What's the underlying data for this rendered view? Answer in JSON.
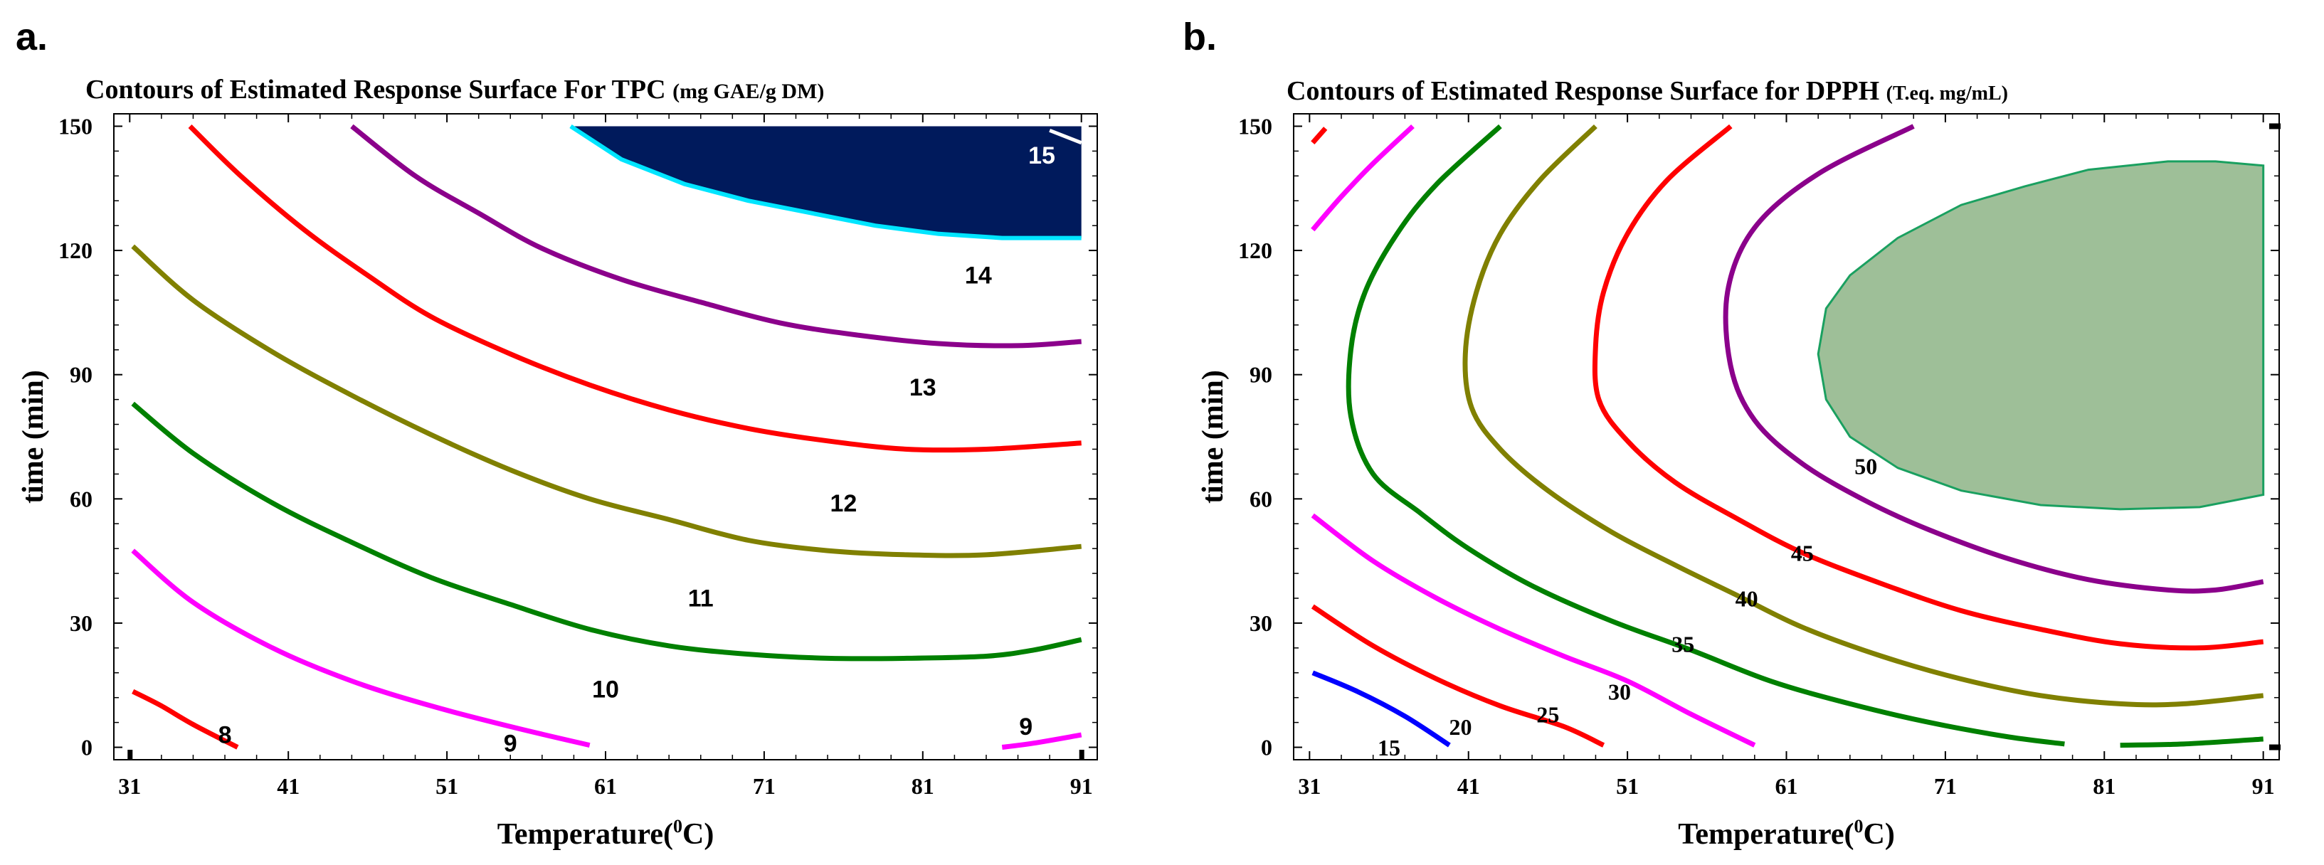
{
  "chart_data": [
    {
      "type": "contour",
      "panel_label": "a.",
      "title": "Contours of Estimated Response Surface For TPC",
      "title_unit": "(mg GAE/g DM)",
      "xlabel": "Temperature(",
      "xlabel_sup": "0",
      "xlabel_end": "C)",
      "ylabel": "time (min)",
      "xlim": [
        30,
        92
      ],
      "ylim": [
        -3,
        153
      ],
      "xticks": [
        31,
        41,
        51,
        61,
        71,
        81,
        91
      ],
      "xtick_labels": [
        "31",
        "41",
        "51",
        "61",
        "71",
        "81",
        "91"
      ],
      "yticks": [
        0,
        30,
        60,
        90,
        120,
        150
      ],
      "ytick_labels": [
        "0",
        "30",
        "60",
        "90",
        "120",
        "150"
      ],
      "filled_region": {
        "level": "15",
        "fill": "#001a5c",
        "edge": "#00e5ff",
        "boundary": [
          [
            58.8,
            150
          ],
          [
            62,
            142
          ],
          [
            66,
            136
          ],
          [
            70,
            132
          ],
          [
            74,
            129
          ],
          [
            78,
            126
          ],
          [
            82,
            124
          ],
          [
            86,
            123
          ],
          [
            91,
            123
          ],
          [
            91,
            150
          ]
        ]
      },
      "contours": [
        {
          "level": "8",
          "color": "#ff0000",
          "points": [
            [
              31.2,
              13.5
            ],
            [
              33,
              10
            ],
            [
              35,
              5.5
            ],
            [
              37.8,
              0
            ]
          ]
        },
        {
          "level": "9",
          "color": "#ff00ff",
          "points": [
            [
              31.2,
              47.5
            ],
            [
              35,
              35
            ],
            [
              40,
              24
            ],
            [
              45,
              16
            ],
            [
              50,
              10
            ],
            [
              55,
              5
            ],
            [
              60,
              0.5
            ]
          ]
        },
        {
          "level": "9",
          "color": "#ff00ff",
          "points": [
            [
              86,
              0
            ],
            [
              88,
              1
            ],
            [
              91,
              3
            ]
          ]
        },
        {
          "level": "10",
          "color": "#008000",
          "points": [
            [
              31.2,
              83
            ],
            [
              35,
              71
            ],
            [
              40,
              59
            ],
            [
              45,
              49.5
            ],
            [
              50,
              41
            ],
            [
              55,
              34.5
            ],
            [
              60,
              28.5
            ],
            [
              65,
              24.5
            ],
            [
              70,
              22.5
            ],
            [
              75,
              21.5
            ],
            [
              80,
              21.5
            ],
            [
              85,
              22
            ],
            [
              88,
              23.5
            ],
            [
              91,
              26
            ]
          ]
        },
        {
          "level": "11",
          "color": "#808000",
          "points": [
            [
              31.2,
              121
            ],
            [
              35,
              108
            ],
            [
              40,
              95.5
            ],
            [
              45,
              85
            ],
            [
              50,
              75.5
            ],
            [
              55,
              67
            ],
            [
              60,
              60
            ],
            [
              65,
              55
            ],
            [
              70,
              50
            ],
            [
              75,
              47.5
            ],
            [
              80,
              46.5
            ],
            [
              85,
              46.5
            ],
            [
              91,
              48.5
            ]
          ]
        },
        {
          "level": "12",
          "color": "#ff0000",
          "points": [
            [
              34.8,
              150
            ],
            [
              38,
              138
            ],
            [
              42,
              125
            ],
            [
              46,
              114
            ],
            [
              50,
              104
            ],
            [
              55,
              95
            ],
            [
              60,
              87.5
            ],
            [
              65,
              81.5
            ],
            [
              70,
              77
            ],
            [
              75,
              74
            ],
            [
              80,
              72
            ],
            [
              85,
              72
            ],
            [
              91,
              73.5
            ]
          ]
        },
        {
          "level": "13",
          "color": "#8b008b",
          "points": [
            [
              45,
              150
            ],
            [
              49,
              138
            ],
            [
              53,
              129
            ],
            [
              57,
              120.5
            ],
            [
              62,
              113
            ],
            [
              67,
              107.5
            ],
            [
              72,
              102.5
            ],
            [
              77,
              99.5
            ],
            [
              82,
              97.5
            ],
            [
              87,
              97
            ],
            [
              91,
              98
            ]
          ]
        }
      ],
      "labels": [
        {
          "text": "8",
          "x": 37,
          "y": 1
        },
        {
          "text": "9",
          "x": 55,
          "y": -1
        },
        {
          "text": "9",
          "x": 87.5,
          "y": 3
        },
        {
          "text": "10",
          "x": 61,
          "y": 12
        },
        {
          "text": "11",
          "x": 67,
          "y": 34
        },
        {
          "text": "12",
          "x": 76,
          "y": 57
        },
        {
          "text": "13",
          "x": 81,
          "y": 85
        },
        {
          "text": "14",
          "x": 84.5,
          "y": 112
        },
        {
          "text": "15",
          "x": 88.5,
          "y": 141
        }
      ],
      "marker_15": [
        [
          89,
          149
        ],
        [
          91,
          146
        ]
      ]
    },
    {
      "type": "contour",
      "panel_label": "b.",
      "title": "Contours of Estimated Response Surface for DPPH",
      "title_unit": "(T.eq. mg/mL)",
      "xlabel": "Temperature(",
      "xlabel_sup": "0",
      "xlabel_end": "C)",
      "ylabel": "time (min)",
      "xlim": [
        30,
        92
      ],
      "ylim": [
        -3,
        153
      ],
      "xticks": [
        31,
        41,
        51,
        61,
        71,
        81,
        91
      ],
      "xtick_labels": [
        "31",
        "41",
        "51",
        "61",
        "71",
        "81",
        "91"
      ],
      "yticks": [
        0,
        30,
        60,
        90,
        120,
        150
      ],
      "ytick_labels": [
        "0",
        "30",
        "60",
        "90",
        "120",
        "150"
      ],
      "filled_region": {
        "level": "50",
        "fill": "#9ebf98",
        "edge": "#1aa060",
        "boundary": [
          [
            91,
            61
          ],
          [
            87,
            58
          ],
          [
            82,
            57.5
          ],
          [
            77,
            58.5
          ],
          [
            72,
            62
          ],
          [
            68,
            67.5
          ],
          [
            65,
            75
          ],
          [
            63.5,
            84
          ],
          [
            63,
            95
          ],
          [
            63.5,
            106
          ],
          [
            65,
            114
          ],
          [
            68,
            123
          ],
          [
            72,
            131
          ],
          [
            76,
            135.5
          ],
          [
            80,
            139.5
          ],
          [
            85,
            141.5
          ],
          [
            88,
            141.5
          ],
          [
            91,
            140.5
          ]
        ]
      },
      "contours": [
        {
          "level": "15",
          "color": "#0000ff",
          "points": [
            [
              31.2,
              18
            ],
            [
              34,
              13.5
            ],
            [
              37,
              7.5
            ],
            [
              39.8,
              0.5
            ]
          ]
        },
        {
          "level": "20",
          "color": "#ff0000",
          "points": [
            [
              31.2,
              34
            ],
            [
              35,
              24.5
            ],
            [
              39,
              16.5
            ],
            [
              43,
              10
            ],
            [
              47,
              5
            ],
            [
              49.5,
              0.5
            ]
          ]
        },
        {
          "level": "20",
          "color": "#ff0000",
          "points": [
            [
              31.2,
              146
            ],
            [
              32,
              149.5
            ]
          ]
        },
        {
          "level": "25",
          "color": "#ff00ff",
          "points": [
            [
              31.2,
              56
            ],
            [
              35,
              45
            ],
            [
              39,
              36
            ],
            [
              43,
              28.5
            ],
            [
              47,
              22
            ],
            [
              51,
              16
            ],
            [
              55,
              8
            ],
            [
              59,
              0.5
            ]
          ]
        },
        {
          "level": "25",
          "color": "#ff00ff",
          "points": [
            [
              31.2,
              125
            ],
            [
              33,
              133
            ],
            [
              35,
              141
            ],
            [
              37.5,
              150
            ]
          ]
        },
        {
          "level": "30",
          "color": "#008000",
          "points": [
            [
              43,
              150
            ],
            [
              39,
              136
            ],
            [
              36.5,
              124
            ],
            [
              34.5,
              110
            ],
            [
              33.6,
              96
            ],
            [
              33.6,
              80
            ],
            [
              35,
              66
            ],
            [
              38,
              56.5
            ],
            [
              41,
              48
            ],
            [
              45,
              39
            ],
            [
              50,
              30.5
            ],
            [
              55,
              23.5
            ],
            [
              60,
              16
            ],
            [
              65,
              10.5
            ],
            [
              70,
              6
            ],
            [
              75,
              2.5
            ],
            [
              78.5,
              0.8
            ]
          ]
        },
        {
          "level": "30",
          "color": "#008000",
          "points": [
            [
              82,
              0.5
            ],
            [
              86,
              0.8
            ],
            [
              91,
              2
            ]
          ]
        },
        {
          "level": "35",
          "color": "#808000",
          "points": [
            [
              49,
              150
            ],
            [
              45.5,
              137
            ],
            [
              43,
              124
            ],
            [
              41.5,
              110
            ],
            [
              40.8,
              95
            ],
            [
              41.2,
              82
            ],
            [
              43,
              72
            ],
            [
              46,
              62
            ],
            [
              50,
              52
            ],
            [
              54,
              44
            ],
            [
              58,
              36.5
            ],
            [
              62,
              29
            ],
            [
              67,
              22
            ],
            [
              72,
              16.5
            ],
            [
              77,
              12.5
            ],
            [
              82,
              10.5
            ],
            [
              86,
              10.5
            ],
            [
              91,
              12.5
            ]
          ]
        },
        {
          "level": "40",
          "color": "#ff0000",
          "points": [
            [
              57.5,
              150
            ],
            [
              53.5,
              137
            ],
            [
              51,
              124
            ],
            [
              49.5,
              110
            ],
            [
              49,
              97
            ],
            [
              49.2,
              84
            ],
            [
              51,
              74
            ],
            [
              54,
              64
            ],
            [
              58,
              55
            ],
            [
              62,
              47
            ],
            [
              67,
              39.5
            ],
            [
              72,
              33
            ],
            [
              77,
              28.5
            ],
            [
              82,
              25
            ],
            [
              87,
              24
            ],
            [
              91,
              25.5
            ]
          ]
        },
        {
          "level": "45",
          "color": "#8b008b",
          "points": [
            [
              69,
              150
            ],
            [
              63,
              138.5
            ],
            [
              59,
              125.5
            ],
            [
              57.3,
              110
            ],
            [
              57.5,
              92
            ],
            [
              59,
              79
            ],
            [
              62,
              68.5
            ],
            [
              66,
              59.5
            ],
            [
              70,
              52.5
            ],
            [
              75,
              45.5
            ],
            [
              80,
              40.5
            ],
            [
              85,
              38
            ],
            [
              88,
              38
            ],
            [
              91,
              40
            ]
          ]
        }
      ],
      "labels": [
        {
          "text": "15",
          "x": 36,
          "y": -2
        },
        {
          "text": "20",
          "x": 40.5,
          "y": 3
        },
        {
          "text": "25",
          "x": 46,
          "y": 6
        },
        {
          "text": "30",
          "x": 50.5,
          "y": 11.5
        },
        {
          "text": "35",
          "x": 54.5,
          "y": 23
        },
        {
          "text": "40",
          "x": 58.5,
          "y": 34
        },
        {
          "text": "45",
          "x": 62,
          "y": 45
        },
        {
          "text": "50",
          "x": 66,
          "y": 66
        }
      ],
      "edge_marks": [
        [
          91.5,
          150
        ],
        [
          91.5,
          0
        ]
      ]
    }
  ]
}
